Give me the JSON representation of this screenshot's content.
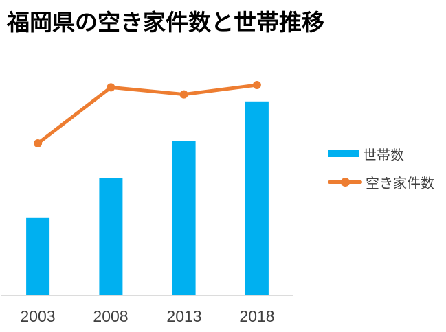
{
  "title": "福岡県の空き家件数と世帯推移",
  "colors": {
    "bar": "#00B0F0",
    "line": "#ED7D31",
    "axis_line": "#DCDCDC",
    "tick_label": "#404040",
    "title": "#000000",
    "background": "#FFFFFF"
  },
  "legend": {
    "items": [
      {
        "label": "世帯数",
        "type": "bar",
        "color": "#00B0F0"
      },
      {
        "label": "空き家件数",
        "type": "line",
        "color": "#ED7D31"
      }
    ]
  },
  "chart_data": {
    "type": "bar+line",
    "title": "福岡県の空き家件数と世帯推移",
    "categories": [
      "2003",
      "2008",
      "2013",
      "2018"
    ],
    "series": [
      {
        "name": "世帯数",
        "type": "bar",
        "color": "#00B0F0",
        "values": [
          0.33,
          0.5,
          0.66,
          0.83
        ]
      },
      {
        "name": "空き家件数",
        "type": "line",
        "color": "#ED7D31",
        "values": [
          0.65,
          0.89,
          0.86,
          0.9
        ]
      }
    ],
    "xlabel": "",
    "ylabel": "",
    "y_axis": "unlabeled (no ticks, no gridlines, no value labels shown); values are fractions of plot height",
    "ylim": [
      0,
      1
    ],
    "grid": false,
    "legend_position": "right"
  }
}
